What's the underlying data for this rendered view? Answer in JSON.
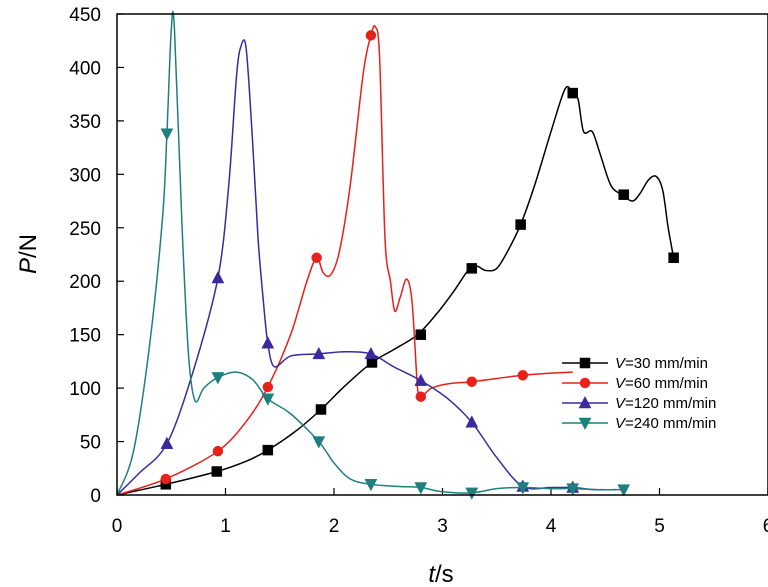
{
  "chart_data": {
    "type": "line",
    "xlabel": {
      "var": "t",
      "unit": "/s"
    },
    "ylabel": {
      "var": "P",
      "unit": "/N"
    },
    "xlim": [
      0,
      6
    ],
    "ylim": [
      0,
      450
    ],
    "x_ticks": [
      0,
      1,
      2,
      3,
      4,
      5,
      6
    ],
    "y_ticks": [
      0,
      50,
      100,
      150,
      200,
      250,
      300,
      350,
      400,
      450
    ],
    "grid": false,
    "legend_position": "right",
    "series": [
      {
        "name": "V=30 mm/min",
        "legend_var": "V",
        "legend_rest": "=30 mm/min",
        "color": "#000000",
        "marker": "square",
        "curve": [
          [
            0,
            0
          ],
          [
            0.45,
            10
          ],
          [
            0.92,
            22
          ],
          [
            1.2,
            32
          ],
          [
            1.39,
            42
          ],
          [
            1.65,
            60
          ],
          [
            1.88,
            80
          ],
          [
            2.1,
            102
          ],
          [
            2.35,
            124
          ],
          [
            2.55,
            136
          ],
          [
            2.77,
            150
          ],
          [
            2.95,
            170
          ],
          [
            3.1,
            190
          ],
          [
            3.25,
            212
          ],
          [
            3.32,
            214
          ],
          [
            3.4,
            210
          ],
          [
            3.5,
            212
          ],
          [
            3.6,
            228
          ],
          [
            3.72,
            253
          ],
          [
            3.85,
            290
          ],
          [
            4.0,
            340
          ],
          [
            4.13,
            380
          ],
          [
            4.2,
            376
          ],
          [
            4.25,
            370
          ],
          [
            4.3,
            340
          ],
          [
            4.38,
            340
          ],
          [
            4.45,
            320
          ],
          [
            4.55,
            290
          ],
          [
            4.65,
            281
          ],
          [
            4.75,
            275
          ],
          [
            4.82,
            282
          ],
          [
            4.9,
            295
          ],
          [
            4.97,
            298
          ],
          [
            5.03,
            285
          ],
          [
            5.08,
            250
          ],
          [
            5.13,
            222
          ]
        ],
        "markers": [
          [
            0.45,
            10
          ],
          [
            0.92,
            22
          ],
          [
            1.39,
            42
          ],
          [
            1.88,
            80
          ],
          [
            2.35,
            124
          ],
          [
            2.8,
            150
          ],
          [
            3.27,
            212
          ],
          [
            3.72,
            253
          ],
          [
            4.2,
            376
          ],
          [
            4.67,
            281
          ],
          [
            5.13,
            222
          ]
        ]
      },
      {
        "name": "V=60 mm/min",
        "legend_var": "V",
        "legend_rest": "=60 mm/min",
        "color": "#e8201a",
        "marker": "circle",
        "curve": [
          [
            0,
            0
          ],
          [
            0.45,
            15
          ],
          [
            0.93,
            41
          ],
          [
            1.2,
            70
          ],
          [
            1.39,
            101
          ],
          [
            1.6,
            150
          ],
          [
            1.75,
            200
          ],
          [
            1.84,
            222
          ],
          [
            1.9,
            208
          ],
          [
            1.97,
            206
          ],
          [
            2.05,
            228
          ],
          [
            2.15,
            290
          ],
          [
            2.27,
            395
          ],
          [
            2.34,
            430
          ],
          [
            2.38,
            438
          ],
          [
            2.42,
            410
          ],
          [
            2.47,
            240
          ],
          [
            2.52,
            200
          ],
          [
            2.56,
            172
          ],
          [
            2.61,
            185
          ],
          [
            2.67,
            202
          ],
          [
            2.72,
            180
          ],
          [
            2.77,
            100
          ],
          [
            2.8,
            92
          ],
          [
            2.9,
            100
          ],
          [
            3.05,
            104
          ],
          [
            3.27,
            106
          ],
          [
            3.5,
            109
          ],
          [
            3.74,
            112
          ],
          [
            4.0,
            114
          ],
          [
            4.2,
            115
          ]
        ],
        "markers": [
          [
            0.45,
            15
          ],
          [
            0.93,
            41
          ],
          [
            1.39,
            101
          ],
          [
            1.84,
            222
          ],
          [
            2.34,
            430
          ],
          [
            2.8,
            92
          ],
          [
            3.27,
            106
          ],
          [
            3.74,
            112
          ]
        ]
      },
      {
        "name": "V=120 mm/min",
        "legend_var": "V",
        "legend_rest": "=120 mm/min",
        "color": "#3a2a9e",
        "marker": "triangle-up",
        "curve": [
          [
            0,
            0
          ],
          [
            0.2,
            20
          ],
          [
            0.46,
            48
          ],
          [
            0.7,
            115
          ],
          [
            0.93,
            203
          ],
          [
            1.03,
            290
          ],
          [
            1.1,
            390
          ],
          [
            1.14,
            419
          ],
          [
            1.19,
            418
          ],
          [
            1.25,
            330
          ],
          [
            1.3,
            240
          ],
          [
            1.35,
            180
          ],
          [
            1.39,
            142
          ],
          [
            1.45,
            120
          ],
          [
            1.6,
            130
          ],
          [
            1.86,
            132
          ],
          [
            2.1,
            134
          ],
          [
            2.34,
            132
          ],
          [
            2.55,
            120
          ],
          [
            2.8,
            107
          ],
          [
            3.05,
            90
          ],
          [
            3.27,
            68
          ],
          [
            3.5,
            35
          ],
          [
            3.74,
            8
          ],
          [
            4.0,
            7
          ],
          [
            4.2,
            7
          ],
          [
            4.4,
            5
          ],
          [
            4.6,
            5
          ]
        ],
        "markers": [
          [
            0.46,
            48
          ],
          [
            0.93,
            203
          ],
          [
            1.39,
            142
          ],
          [
            1.86,
            132
          ],
          [
            2.34,
            132
          ],
          [
            2.8,
            107
          ],
          [
            3.27,
            68
          ],
          [
            3.74,
            8
          ],
          [
            4.2,
            7
          ]
        ]
      },
      {
        "name": "V=240 mm/min",
        "legend_var": "V",
        "legend_rest": "=240 mm/min",
        "color": "#1f7f7f",
        "marker": "triangle-down",
        "curve": [
          [
            0,
            0
          ],
          [
            0.15,
            40
          ],
          [
            0.3,
            140
          ],
          [
            0.42,
            260
          ],
          [
            0.46,
            338
          ],
          [
            0.5,
            435
          ],
          [
            0.53,
            435
          ],
          [
            0.6,
            250
          ],
          [
            0.66,
            130
          ],
          [
            0.72,
            88
          ],
          [
            0.8,
            100
          ],
          [
            0.93,
            110
          ],
          [
            1.1,
            115
          ],
          [
            1.25,
            108
          ],
          [
            1.39,
            90
          ],
          [
            1.6,
            76
          ],
          [
            1.86,
            50
          ],
          [
            2.0,
            30
          ],
          [
            2.15,
            15
          ],
          [
            2.34,
            10
          ],
          [
            2.6,
            8
          ],
          [
            2.8,
            7
          ],
          [
            3.0,
            3
          ],
          [
            3.27,
            2
          ],
          [
            3.5,
            6
          ],
          [
            3.74,
            7
          ],
          [
            4.0,
            6
          ],
          [
            4.2,
            6
          ],
          [
            4.45,
            5
          ],
          [
            4.67,
            5
          ]
        ],
        "markers": [
          [
            0.46,
            338
          ],
          [
            0.93,
            110
          ],
          [
            1.39,
            90
          ],
          [
            1.86,
            50
          ],
          [
            2.34,
            10
          ],
          [
            2.8,
            7
          ],
          [
            3.27,
            2
          ],
          [
            3.74,
            7
          ],
          [
            4.2,
            6
          ],
          [
            4.67,
            5
          ]
        ]
      }
    ]
  }
}
